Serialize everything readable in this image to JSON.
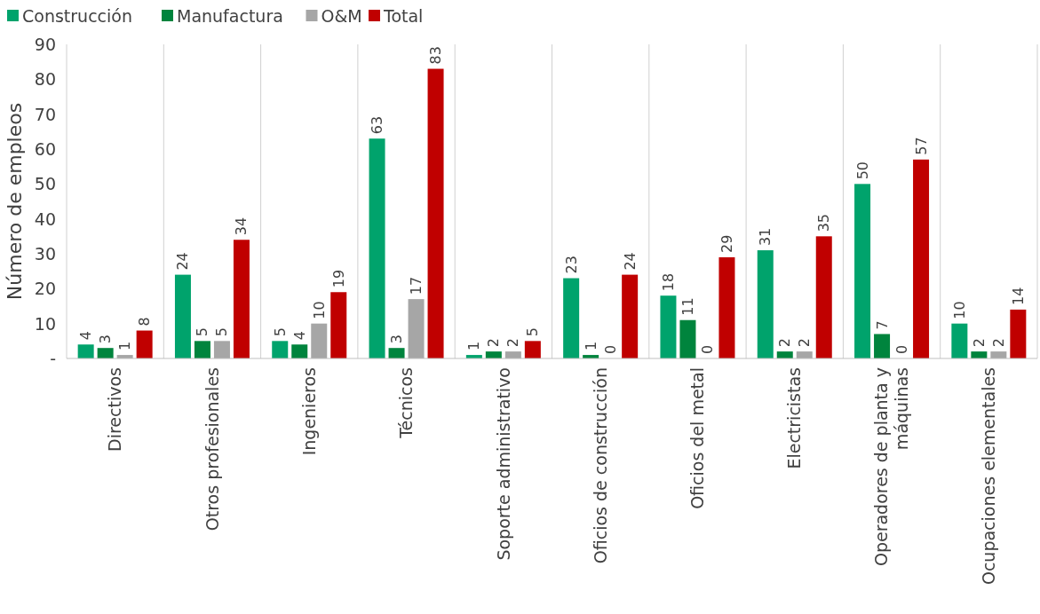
{
  "chart_data": {
    "type": "bar",
    "ylabel": "Número de empleos",
    "categories": [
      "Directivos",
      "Otros profesionales",
      "Ingenieros",
      "Técnicos",
      "Soporte administrativo",
      "Oficios de construcción",
      "Oficios del metal",
      "Electricistas",
      "Operadores de planta y máquinas",
      "Ocupaciones elementales"
    ],
    "series": [
      {
        "name": "Construcción",
        "color": "#00a36c",
        "values": [
          4,
          24,
          5,
          63,
          1,
          23,
          18,
          31,
          50,
          10
        ]
      },
      {
        "name": "Manufactura",
        "color": "#00843d",
        "values": [
          3,
          5,
          4,
          3,
          2,
          1,
          11,
          2,
          7,
          2
        ]
      },
      {
        "name": "O&M",
        "color": "#a6a6a6",
        "values": [
          1,
          5,
          10,
          17,
          2,
          0,
          0,
          2,
          0,
          2
        ]
      },
      {
        "name": "Total",
        "color": "#c00000",
        "values": [
          8,
          34,
          19,
          83,
          5,
          24,
          29,
          35,
          57,
          14
        ]
      }
    ],
    "ylim": [
      0,
      90
    ],
    "yticks": [
      {
        "value": 0,
        "label": "-"
      },
      10,
      20,
      30,
      40,
      50,
      60,
      70,
      80,
      90
    ],
    "grid": "x",
    "legend": "top left",
    "data_labels": true
  }
}
